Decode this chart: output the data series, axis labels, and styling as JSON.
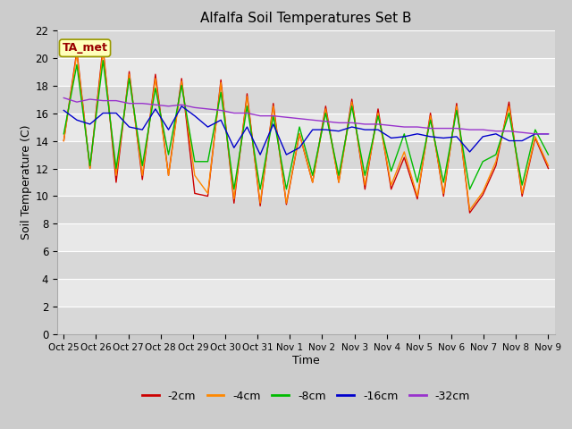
{
  "title": "Alfalfa Soil Temperatures Set B",
  "xlabel": "Time",
  "ylabel": "Soil Temperature (C)",
  "ylim": [
    0,
    22
  ],
  "yticks": [
    0,
    2,
    4,
    6,
    8,
    10,
    12,
    14,
    16,
    18,
    20,
    22
  ],
  "x_labels": [
    "Oct 25",
    "Oct 26",
    "Oct 27",
    "Oct 28",
    "Oct 29",
    "Oct 30",
    "Oct 31",
    "Nov 1",
    "Nov 2",
    "Nov 3",
    "Nov 4",
    "Nov 5",
    "Nov 6",
    "Nov 7",
    "Nov 8",
    "Nov 9"
  ],
  "colors": {
    "-2cm": "#cc0000",
    "-4cm": "#ff8800",
    "-8cm": "#00bb00",
    "-16cm": "#0000cc",
    "-32cm": "#9933cc"
  },
  "annotation_label": "TA_met",
  "annotation_color": "#990000",
  "annotation_bg": "#ffffbb",
  "bg_color": "#cccccc",
  "band_colors": [
    "#d8d8d8",
    "#e8e8e8"
  ],
  "series": {
    "-2cm": [
      14.0,
      20.5,
      12.0,
      20.8,
      11.0,
      19.0,
      11.2,
      18.8,
      11.5,
      18.5,
      10.2,
      10.0,
      18.4,
      9.5,
      17.4,
      9.3,
      16.7,
      9.4,
      14.5,
      11.0,
      16.5,
      11.0,
      17.0,
      10.5,
      16.3,
      10.5,
      12.8,
      9.8,
      16.0,
      10.0,
      16.7,
      8.8,
      10.1,
      12.2,
      16.8,
      10.0,
      14.2,
      12.0
    ],
    "-4cm": [
      14.0,
      20.3,
      12.0,
      20.5,
      11.5,
      18.8,
      11.5,
      18.5,
      11.5,
      18.3,
      11.5,
      10.2,
      18.2,
      9.8,
      17.2,
      9.5,
      16.5,
      9.5,
      14.5,
      11.0,
      16.3,
      11.0,
      16.8,
      10.8,
      16.0,
      10.8,
      13.2,
      10.0,
      15.8,
      10.2,
      16.5,
      9.0,
      10.3,
      12.5,
      16.5,
      10.2,
      14.3,
      12.2
    ],
    "-8cm": [
      14.5,
      19.5,
      12.2,
      19.8,
      12.0,
      18.5,
      12.2,
      17.8,
      13.0,
      18.0,
      12.5,
      12.5,
      17.5,
      10.5,
      16.5,
      10.5,
      15.8,
      10.5,
      15.0,
      11.5,
      16.0,
      11.5,
      16.5,
      11.5,
      15.8,
      11.8,
      14.5,
      11.0,
      15.5,
      11.0,
      16.2,
      10.5,
      12.5,
      13.0,
      16.0,
      10.8,
      14.8,
      13.0
    ],
    "-16cm": [
      16.2,
      15.5,
      15.2,
      16.0,
      16.0,
      15.0,
      14.8,
      16.3,
      14.8,
      16.5,
      15.8,
      15.0,
      15.5,
      13.5,
      15.0,
      13.0,
      15.2,
      13.0,
      13.5,
      14.8,
      14.8,
      14.7,
      15.0,
      14.8,
      14.8,
      14.2,
      14.3,
      14.5,
      14.3,
      14.2,
      14.3,
      13.2,
      14.3,
      14.5,
      14.0,
      14.0,
      14.5,
      14.5
    ],
    "-32cm": [
      17.1,
      16.8,
      17.0,
      16.9,
      16.9,
      16.7,
      16.7,
      16.6,
      16.5,
      16.6,
      16.4,
      16.3,
      16.2,
      16.0,
      16.0,
      15.8,
      15.8,
      15.7,
      15.6,
      15.5,
      15.4,
      15.3,
      15.3,
      15.2,
      15.2,
      15.1,
      15.0,
      15.0,
      14.9,
      14.9,
      14.9,
      14.8,
      14.8,
      14.7,
      14.7,
      14.6,
      14.5,
      14.5
    ]
  },
  "n_points": 38
}
